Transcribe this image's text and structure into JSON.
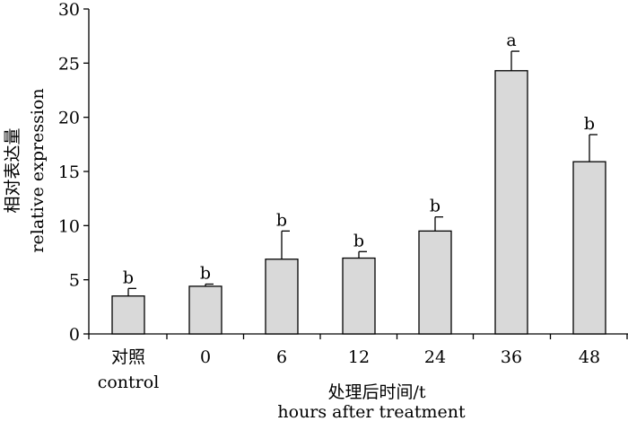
{
  "chart_data": {
    "type": "bar",
    "categories": [
      {
        "line1": "对照",
        "line2": "control"
      },
      {
        "line1": "0",
        "line2": ""
      },
      {
        "line1": "6",
        "line2": ""
      },
      {
        "line1": "12",
        "line2": ""
      },
      {
        "line1": "24",
        "line2": ""
      },
      {
        "line1": "36",
        "line2": ""
      },
      {
        "line1": "48",
        "line2": ""
      }
    ],
    "values": [
      3.5,
      4.4,
      6.9,
      7.0,
      9.5,
      24.3,
      15.9
    ],
    "errors": [
      0.7,
      0.2,
      2.6,
      0.6,
      1.3,
      1.8,
      2.5
    ],
    "significance": [
      "b",
      "b",
      "b",
      "b",
      "b",
      "a",
      "b"
    ],
    "xlabel": "处理后时间/t",
    "xlabel_en": "hours after treatment",
    "ylabel": "相对表达量",
    "ylabel_en": "relative expression",
    "ylim": [
      0,
      30
    ],
    "yticks": [
      0,
      5,
      10,
      15,
      20,
      25,
      30
    ],
    "bar_color": "#d9d9d9",
    "grid": false
  }
}
